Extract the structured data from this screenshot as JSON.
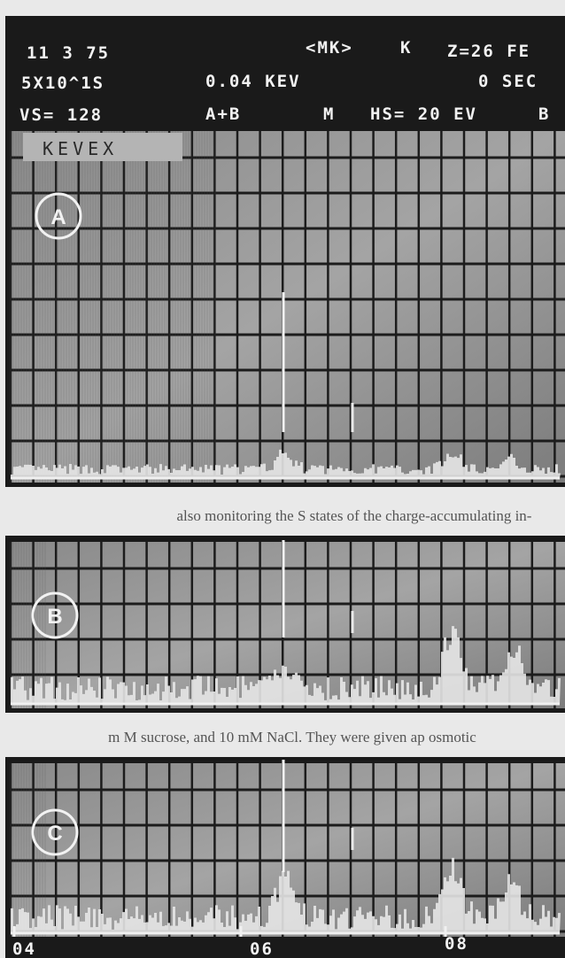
{
  "header": {
    "row1": [
      "11 3 75",
      "<MK>",
      "K",
      "Z=26 FE"
    ],
    "row2": [
      "5X10^1S",
      "0.04 KEV",
      "0 SEC"
    ],
    "row3": [
      "VS= 128",
      "A+B",
      "M",
      "HS= 20 EV",
      "B"
    ]
  },
  "screen_label": "KEVEX",
  "panels": [
    {
      "label": "A"
    },
    {
      "label": "B"
    },
    {
      "label": "C"
    }
  ],
  "x_axis": {
    "labels": [
      "04",
      "06",
      "08"
    ]
  },
  "bleed_text": [
    "also monitoring the S states of the charge-accumulating in-",
    "m M sucrose, and 10 mM NaCl. They were given ap osmotic"
  ]
}
